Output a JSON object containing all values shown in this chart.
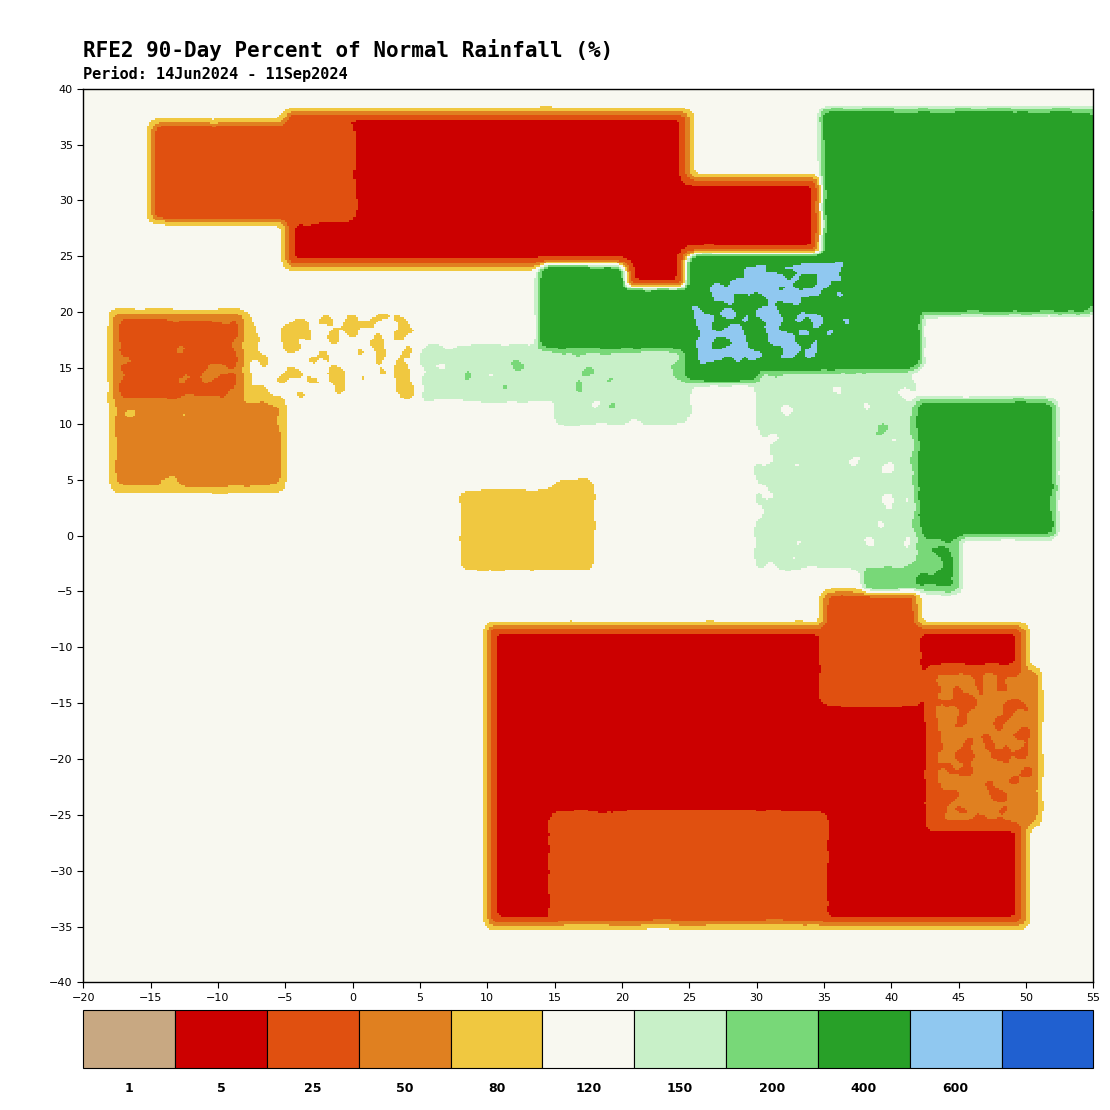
{
  "title": "RFE2 90-Day Percent of Normal Rainfall (%)",
  "subtitle": "Period: 14Jun2024 - 11Sep2024",
  "title_fontsize": 15,
  "subtitle_fontsize": 11,
  "extent": [
    -20,
    55,
    -40,
    40
  ],
  "colorbar_bounds": [
    0,
    1,
    5,
    25,
    50,
    80,
    120,
    150,
    200,
    400,
    600,
    9999
  ],
  "colorbar_colors": [
    "#c8a882",
    "#cc0000",
    "#e05010",
    "#e08020",
    "#f0c840",
    "#f8f8f0",
    "#c8f0c8",
    "#78d878",
    "#28a028",
    "#90c8f0",
    "#2060d0"
  ],
  "colorbar_labels": [
    "1",
    "5",
    "25",
    "50",
    "80",
    "120",
    "150",
    "200",
    "400",
    "600"
  ],
  "xticks": [
    -20,
    -15,
    -10,
    -5,
    0,
    5,
    10,
    15,
    20,
    25,
    30,
    35,
    40,
    45,
    50,
    55
  ],
  "yticks": [
    -40,
    -35,
    -30,
    -25,
    -20,
    -15,
    -10,
    -5,
    0,
    5,
    10,
    15,
    20,
    25,
    30,
    35,
    40
  ],
  "map_background": "#ffffff",
  "fig_background": "#ffffff",
  "seed": 42,
  "africa_outline_color": "#000000",
  "border_linewidth": 0.5,
  "coast_linewidth": 0.8
}
